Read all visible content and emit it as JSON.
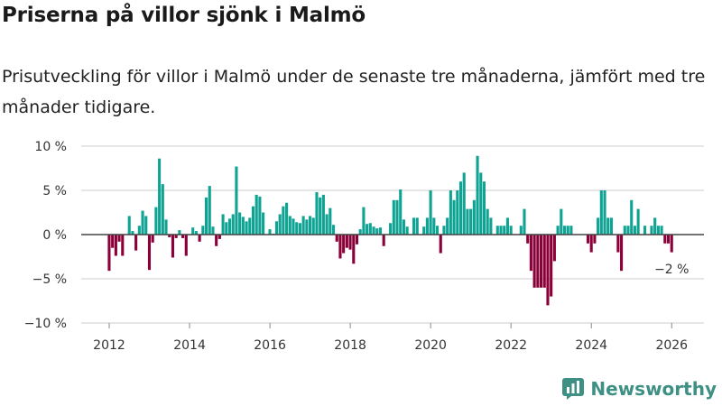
{
  "title": "Priserna på villor sjönk i Malmö",
  "subtitle": "Prisutveckling för villor i Malmö under de senaste tre månaderna, jämfört med tre månader tidigare.",
  "brand": "Newsworthy",
  "colors": {
    "positive": "#0fa394",
    "negative": "#8a0038",
    "grid": "#dddddd",
    "zero": "#444444"
  },
  "chart_data": {
    "type": "bar",
    "title": "Priserna på villor sjönk i Malmö",
    "xlabel": "",
    "ylabel": "",
    "start_month": "2012-01",
    "end_month": "2026-01",
    "frequency": "monthly",
    "ylim": [
      -10,
      10
    ],
    "yticks": [
      10,
      5,
      0,
      -5,
      -10
    ],
    "ytick_labels": [
      "10 %",
      "5 %",
      "0 %",
      "−5 %",
      "−10 %"
    ],
    "xticks": [
      2012,
      2014,
      2016,
      2018,
      2020,
      2022,
      2024,
      2026
    ],
    "xtick_labels": [
      "2012",
      "2014",
      "2016",
      "2018",
      "2020",
      "2022",
      "2024",
      "2026"
    ],
    "grid": true,
    "annotation": "−2 %",
    "values": [
      -4.1,
      -1.5,
      -2.4,
      -0.8,
      -2.4,
      0,
      2.1,
      0.4,
      -1.8,
      1.0,
      2.7,
      2.1,
      -4.0,
      -0.9,
      3.1,
      8.6,
      5.7,
      1.7,
      -0.3,
      -2.6,
      -0.4,
      0.5,
      -0.4,
      -2.4,
      0,
      0.8,
      0.4,
      -0.8,
      1.0,
      4.2,
      5.5,
      0.9,
      -1.3,
      -0.5,
      2.3,
      1.4,
      1.8,
      2.3,
      7.7,
      2.5,
      2.0,
      1.5,
      1.9,
      3.2,
      4.5,
      4.3,
      2.5,
      0,
      0.6,
      0.1,
      1.5,
      2.3,
      3.2,
      3.6,
      2.1,
      1.8,
      1.4,
      1.3,
      2.1,
      1.7,
      2.1,
      1.9,
      4.8,
      4.2,
      4.5,
      2.3,
      3.0,
      1.1,
      -0.8,
      -2.7,
      -2.1,
      -1.5,
      -1.7,
      -3.3,
      -1.1,
      0.6,
      3.1,
      1.2,
      1.3,
      0.9,
      0.7,
      0.8,
      -1.3,
      0,
      1.3,
      3.9,
      3.9,
      5.1,
      1.7,
      0.9,
      0,
      1.9,
      1.9,
      0,
      0.9,
      1.9,
      5.0,
      1.9,
      1.0,
      -2.1,
      1.0,
      1.9,
      5.0,
      3.9,
      5.0,
      6.0,
      7.0,
      2.9,
      2.9,
      3.9,
      8.9,
      7.0,
      6.0,
      2.9,
      1.9,
      0,
      1.0,
      1.0,
      1.0,
      1.9,
      1.0,
      0,
      0,
      1.0,
      2.9,
      -1.0,
      -4.1,
      -6.0,
      -6.0,
      -6.0,
      -6.0,
      -8.0,
      -7.0,
      -3.0,
      1.0,
      2.9,
      1.0,
      1.0,
      1.0,
      0,
      0,
      0,
      0,
      -1.0,
      -2.0,
      -1.0,
      1.9,
      5.0,
      5.0,
      1.9,
      1.9,
      0,
      -2.0,
      -4.1,
      1.0,
      1.0,
      3.9,
      1.0,
      2.9,
      0,
      1.0,
      0,
      1.0,
      1.9,
      1.0,
      1.0,
      -1.0,
      -1.0,
      -2.0
    ]
  }
}
